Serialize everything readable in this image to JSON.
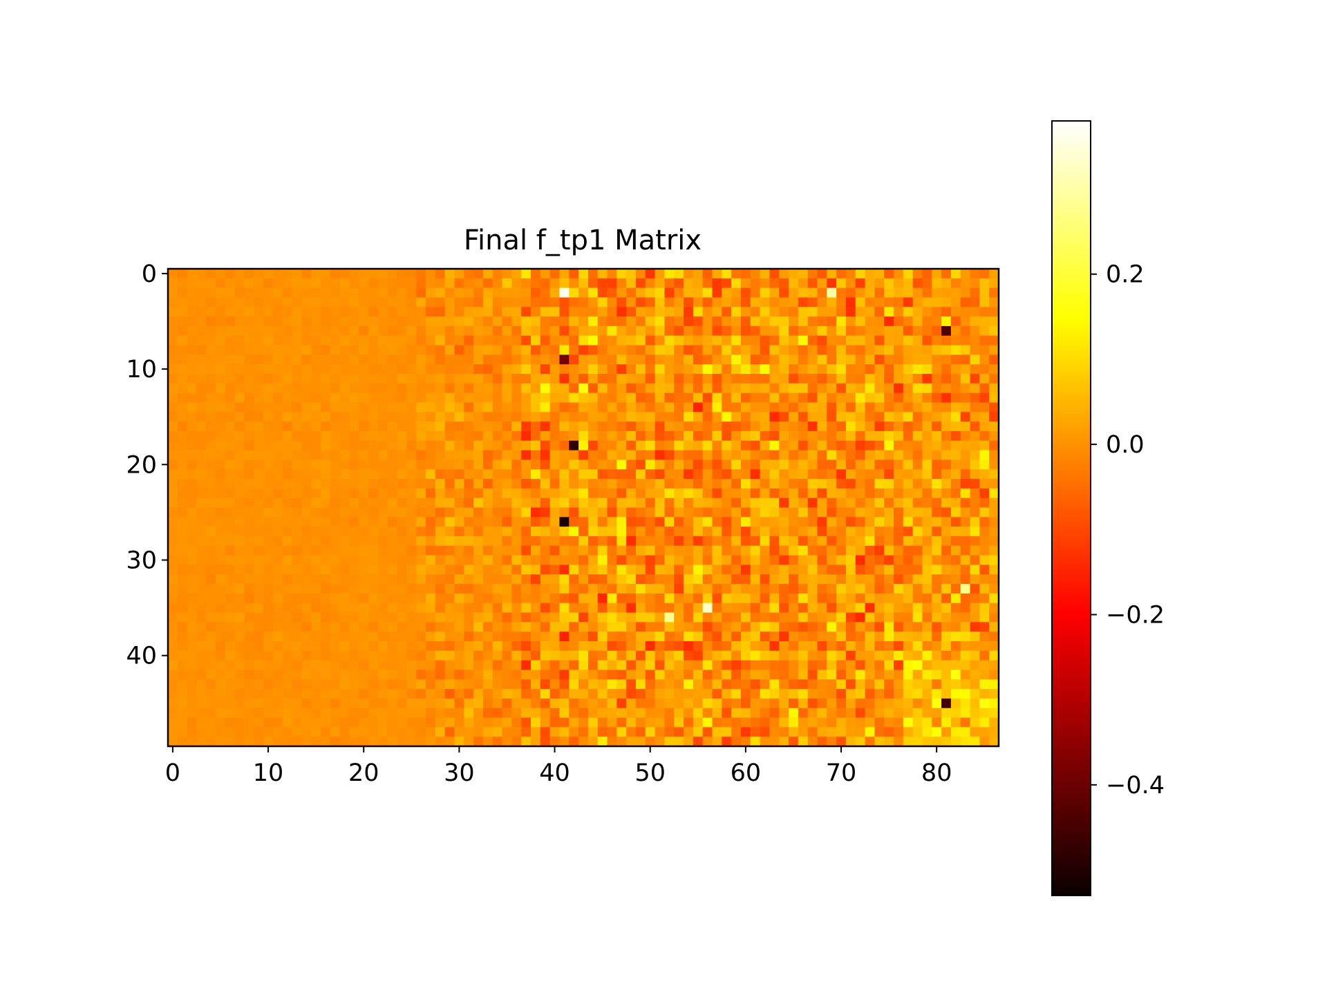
{
  "chart_data": {
    "type": "heatmap",
    "title": "Final f_tp1 Matrix",
    "xlabel": "",
    "ylabel": "",
    "rows": 50,
    "cols": 87,
    "colormap": "hot",
    "value_range": [
      -0.53,
      0.38
    ],
    "x_ticks": [
      0,
      10,
      20,
      30,
      40,
      50,
      60,
      70,
      80
    ],
    "y_ticks": [
      0,
      10,
      20,
      30,
      40
    ],
    "colorbar_ticks": [
      {
        "value": 0.2,
        "label": "0.2"
      },
      {
        "value": 0.0,
        "label": "0.0"
      },
      {
        "value": -0.2,
        "label": "−0.2"
      },
      {
        "value": -0.4,
        "label": "−0.4"
      }
    ],
    "grid": false,
    "notes_on_values": "Columns 0-25 near 0.0 (low variance); columns 26-36 mild variation; columns 37-86 strong variation between about -0.35 and 0.3",
    "extreme_cells": [
      {
        "row": 2,
        "col": 41,
        "value": 0.36
      },
      {
        "row": 18,
        "col": 42,
        "value": -0.5
      },
      {
        "row": 26,
        "col": 41,
        "value": -0.53
      },
      {
        "row": 6,
        "col": 81,
        "value": -0.45
      },
      {
        "row": 45,
        "col": 81,
        "value": -0.47
      },
      {
        "row": 9,
        "col": 41,
        "value": -0.4
      },
      {
        "row": 35,
        "col": 56,
        "value": 0.33
      },
      {
        "row": 36,
        "col": 52,
        "value": 0.28
      },
      {
        "row": 2,
        "col": 69,
        "value": 0.3
      },
      {
        "row": 33,
        "col": 83,
        "value": 0.27
      }
    ]
  },
  "colors": {
    "background": "#ffffff",
    "axis": "#000000"
  }
}
